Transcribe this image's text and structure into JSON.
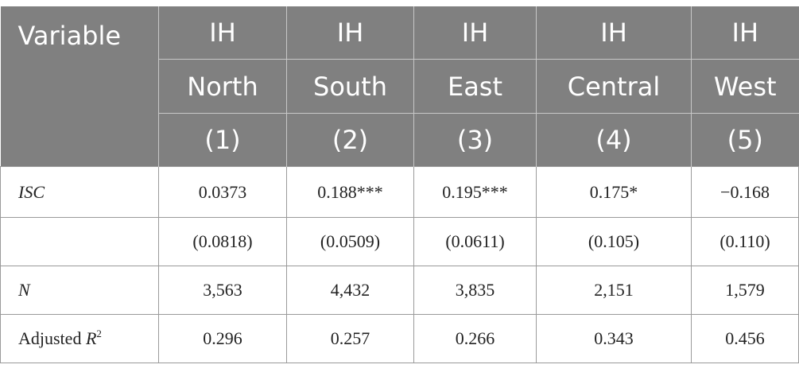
{
  "header": {
    "variable_label": "Variable",
    "columns": [
      {
        "dv": "IH",
        "region": "North",
        "num": "(1)"
      },
      {
        "dv": "IH",
        "region": "South",
        "num": "(2)"
      },
      {
        "dv": "IH",
        "region": "East",
        "num": "(3)"
      },
      {
        "dv": "IH",
        "region": "Central",
        "num": "(4)"
      },
      {
        "dv": "IH",
        "region": "West",
        "num": "(5)"
      }
    ]
  },
  "rows": [
    {
      "label": "ISC",
      "values": [
        "0.0373",
        "0.188***",
        "0.195***",
        "0.175*",
        "−0.168"
      ]
    },
    {
      "label": "",
      "values": [
        "(0.0818)",
        "(0.0509)",
        "(0.0611)",
        "(0.105)",
        "(0.110)"
      ]
    },
    {
      "label": "N",
      "values": [
        "3,563",
        "4,432",
        "3,835",
        "2,151",
        "1,579"
      ]
    },
    {
      "label_main": "Adjusted ",
      "label_var": "R",
      "label_sup": "2",
      "values": [
        "0.296",
        "0.257",
        "0.266",
        "0.343",
        "0.456"
      ]
    }
  ]
}
